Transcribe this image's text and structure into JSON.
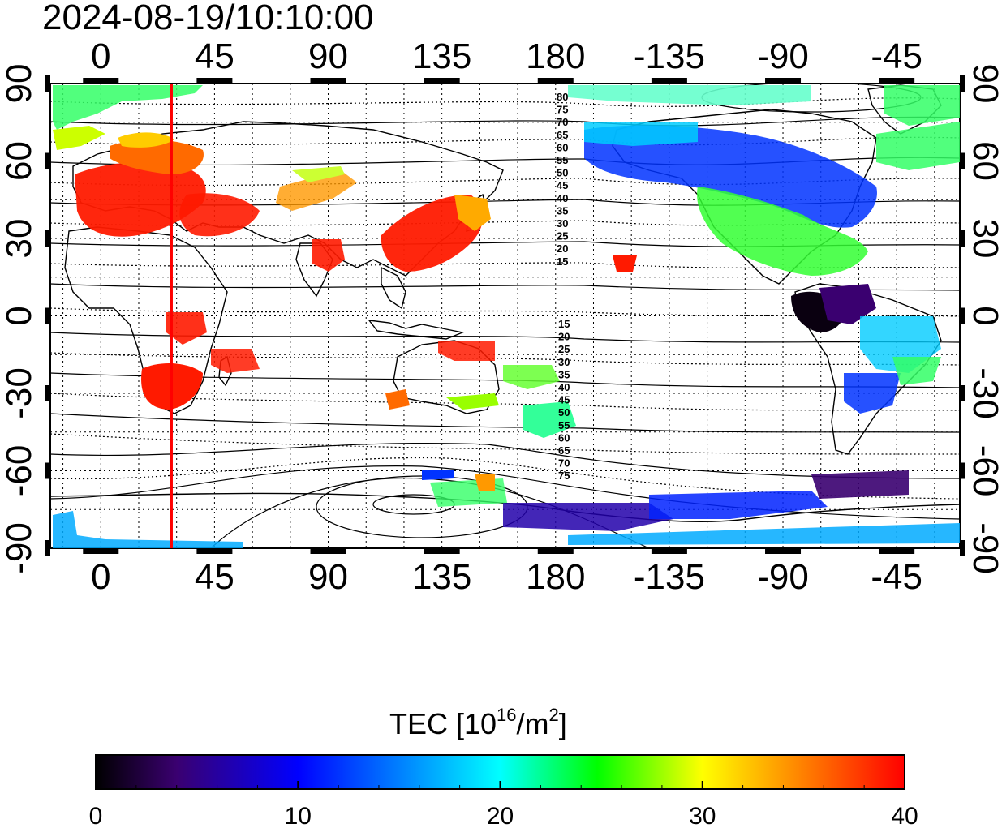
{
  "title": "2024-08-19/10:10:00",
  "map": {
    "x_ticks": [
      "0",
      "45",
      "90",
      "135",
      "180",
      "-135",
      "-90",
      "-45"
    ],
    "x_tick_lons": [
      0,
      45,
      90,
      135,
      180,
      225,
      270,
      315
    ],
    "lon_range": [
      -20,
      340
    ],
    "y_ticks": [
      "90",
      "60",
      "30",
      "0",
      "-30",
      "-60",
      "-90"
    ],
    "y_tick_lats": [
      90,
      60,
      30,
      0,
      -30,
      -60,
      -90
    ],
    "lat_range": [
      -90,
      90
    ],
    "marker_longitude": 28,
    "marker_color": "#ff0000",
    "contour_labels_north": [
      "80",
      "75",
      "70",
      "65",
      "60",
      "55",
      "50",
      "45",
      "40",
      "35",
      "30",
      "25",
      "20",
      "15"
    ],
    "contour_labels_south": [
      "15",
      "20",
      "25",
      "30",
      "35",
      "40",
      "45",
      "50",
      "55",
      "60",
      "65",
      "70",
      "75"
    ]
  },
  "colorbar": {
    "label_main": "TEC  [10",
    "label_sup1": "16",
    "label_mid": "/m",
    "label_sup2": "2",
    "label_end": "]",
    "min": 0,
    "max": 40,
    "ticks": [
      "0",
      "10",
      "20",
      "30",
      "40"
    ],
    "tick_values": [
      0,
      10,
      20,
      30,
      40
    ]
  },
  "colors": {
    "scale": [
      "#000000",
      "#3a0070",
      "#0000ff",
      "#00ffff",
      "#00ff00",
      "#ffff00",
      "#ff0000"
    ]
  }
}
